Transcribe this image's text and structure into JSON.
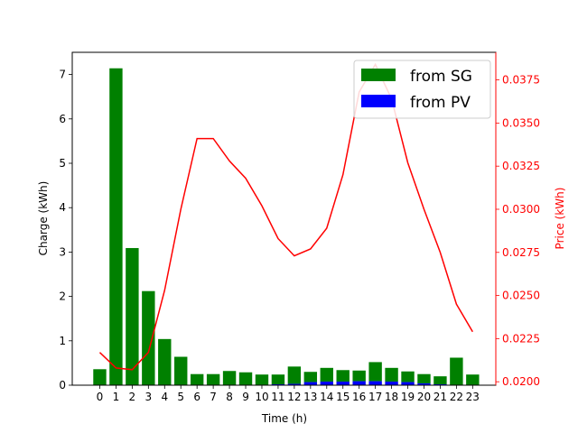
{
  "chart_data": {
    "type": "bar",
    "xlabel": "Time (h)",
    "ylabel": "Charge (kWh)",
    "y2label": "Price (kWh)",
    "categories": [
      "0",
      "1",
      "2",
      "3",
      "4",
      "5",
      "6",
      "7",
      "8",
      "9",
      "10",
      "11",
      "12",
      "13",
      "14",
      "15",
      "16",
      "17",
      "18",
      "19",
      "20",
      "21",
      "22",
      "23"
    ],
    "ylim": [
      0,
      7.5
    ],
    "yticks": [
      "0",
      "1",
      "2",
      "3",
      "4",
      "5",
      "6",
      "7"
    ],
    "y2lim": [
      0.0198,
      0.0391
    ],
    "y2ticks": [
      "0.0200",
      "0.0225",
      "0.0250",
      "0.0275",
      "0.0300",
      "0.0325",
      "0.0350",
      "0.0375"
    ],
    "stacked": true,
    "grid": false,
    "legend_position": "top-right",
    "series": [
      {
        "name": "from PV",
        "kind": "bar",
        "color": "#0000ff",
        "values": [
          0,
          0,
          0,
          0,
          0,
          0,
          0,
          0,
          0,
          0,
          0,
          0.02,
          0.03,
          0.07,
          0.08,
          0.08,
          0.09,
          0.09,
          0.08,
          0.07,
          0.04,
          0.02,
          0,
          0
        ]
      },
      {
        "name": "from SG",
        "kind": "bar",
        "color": "#008000",
        "values": [
          0.36,
          7.14,
          3.09,
          2.12,
          1.04,
          0.64,
          0.25,
          0.25,
          0.32,
          0.29,
          0.24,
          0.22,
          0.39,
          0.23,
          0.31,
          0.26,
          0.24,
          0.43,
          0.31,
          0.24,
          0.21,
          0.18,
          0.62,
          0.24
        ]
      },
      {
        "name": "",
        "kind": "line",
        "axis": "y2",
        "color": "#ff0000",
        "values": [
          0.0217,
          0.0208,
          0.0207,
          0.0217,
          0.0253,
          0.03,
          0.0341,
          0.0341,
          0.0328,
          0.0318,
          0.0302,
          0.0283,
          0.0273,
          0.0277,
          0.0289,
          0.032,
          0.0368,
          0.0384,
          0.0364,
          0.0327,
          0.03,
          0.0275,
          0.0245,
          0.0229
        ]
      }
    ],
    "legend": [
      "from SG",
      "from PV"
    ]
  }
}
